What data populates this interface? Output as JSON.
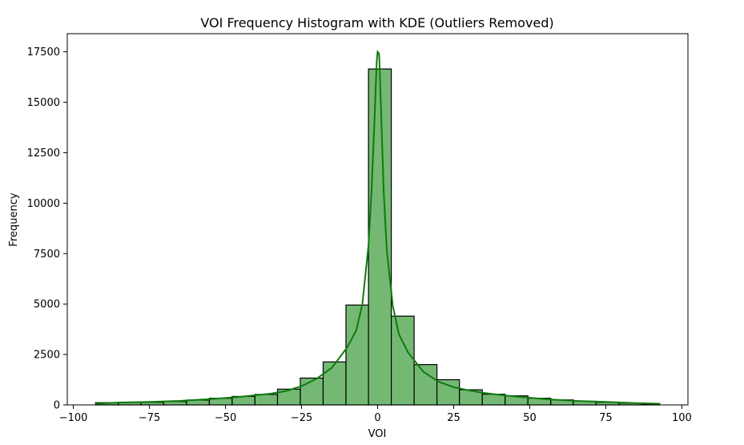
{
  "chart_data": {
    "type": "bar",
    "title": "VOI Frequency Histogram with KDE (Outliers Removed)",
    "xlabel": "VOI",
    "ylabel": "Frequency",
    "xlim": [
      -102,
      102
    ],
    "ylim": [
      0,
      18400
    ],
    "x_ticks": [
      -100,
      -75,
      -50,
      -25,
      0,
      25,
      50,
      75,
      100
    ],
    "x_tick_labels": [
      "−100",
      "−75",
      "−50",
      "−25",
      "0",
      "25",
      "50",
      "75",
      "100"
    ],
    "y_ticks": [
      0,
      2500,
      5000,
      7500,
      10000,
      12500,
      15000,
      17500
    ],
    "y_tick_labels": [
      "0",
      "2500",
      "5000",
      "7500",
      "10000",
      "12500",
      "15000",
      "17500"
    ],
    "grid": false,
    "bar_color": "#74b874",
    "bar_edge_color": "#000000",
    "kde_color": "#0f7a0f",
    "bins": [
      {
        "x0": -92.7,
        "x1": -85.2,
        "count": 110
      },
      {
        "x0": -85.2,
        "x1": -77.7,
        "count": 120
      },
      {
        "x0": -77.7,
        "x1": -70.3,
        "count": 130
      },
      {
        "x0": -70.3,
        "x1": -62.8,
        "count": 170
      },
      {
        "x0": -62.8,
        "x1": -55.3,
        "count": 240
      },
      {
        "x0": -55.3,
        "x1": -47.8,
        "count": 330
      },
      {
        "x0": -47.8,
        "x1": -40.3,
        "count": 420
      },
      {
        "x0": -40.3,
        "x1": -32.9,
        "count": 520
      },
      {
        "x0": -32.9,
        "x1": -25.4,
        "count": 780
      },
      {
        "x0": -25.4,
        "x1": -17.9,
        "count": 1330
      },
      {
        "x0": -17.9,
        "x1": -10.4,
        "count": 2130
      },
      {
        "x0": -10.4,
        "x1": -3.0,
        "count": 4950
      },
      {
        "x0": -3.0,
        "x1": 4.5,
        "count": 16650
      },
      {
        "x0": 4.5,
        "x1": 12.0,
        "count": 4400
      },
      {
        "x0": 12.0,
        "x1": 19.5,
        "count": 2000
      },
      {
        "x0": 19.5,
        "x1": 26.9,
        "count": 1250
      },
      {
        "x0": 26.9,
        "x1": 34.4,
        "count": 750
      },
      {
        "x0": 34.4,
        "x1": 41.9,
        "count": 530
      },
      {
        "x0": 41.9,
        "x1": 49.4,
        "count": 450
      },
      {
        "x0": 49.4,
        "x1": 56.9,
        "count": 330
      },
      {
        "x0": 56.9,
        "x1": 64.3,
        "count": 250
      },
      {
        "x0": 64.3,
        "x1": 71.8,
        "count": 180
      },
      {
        "x0": 71.8,
        "x1": 79.3,
        "count": 130
      },
      {
        "x0": 79.3,
        "x1": 86.8,
        "count": 90
      },
      {
        "x0": 86.8,
        "x1": 92.8,
        "count": 40
      }
    ],
    "kde": {
      "x": [
        -92.7,
        -85,
        -75,
        -65,
        -55,
        -45,
        -35,
        -30,
        -25,
        -20,
        -15,
        -10,
        -7,
        -5,
        -3,
        -2,
        -1,
        -0.3,
        0,
        0.5,
        1,
        2,
        3,
        5,
        7,
        10,
        15,
        20,
        25,
        30,
        35,
        45,
        55,
        65,
        75,
        85,
        92.8
      ],
      "y": [
        60,
        120,
        150,
        200,
        290,
        400,
        560,
        690,
        930,
        1300,
        1850,
        2850,
        3700,
        5000,
        7900,
        10600,
        14200,
        17000,
        17500,
        17400,
        15200,
        10600,
        7700,
        4900,
        3500,
        2600,
        1650,
        1150,
        880,
        720,
        590,
        420,
        290,
        200,
        150,
        90,
        60
      ]
    }
  }
}
